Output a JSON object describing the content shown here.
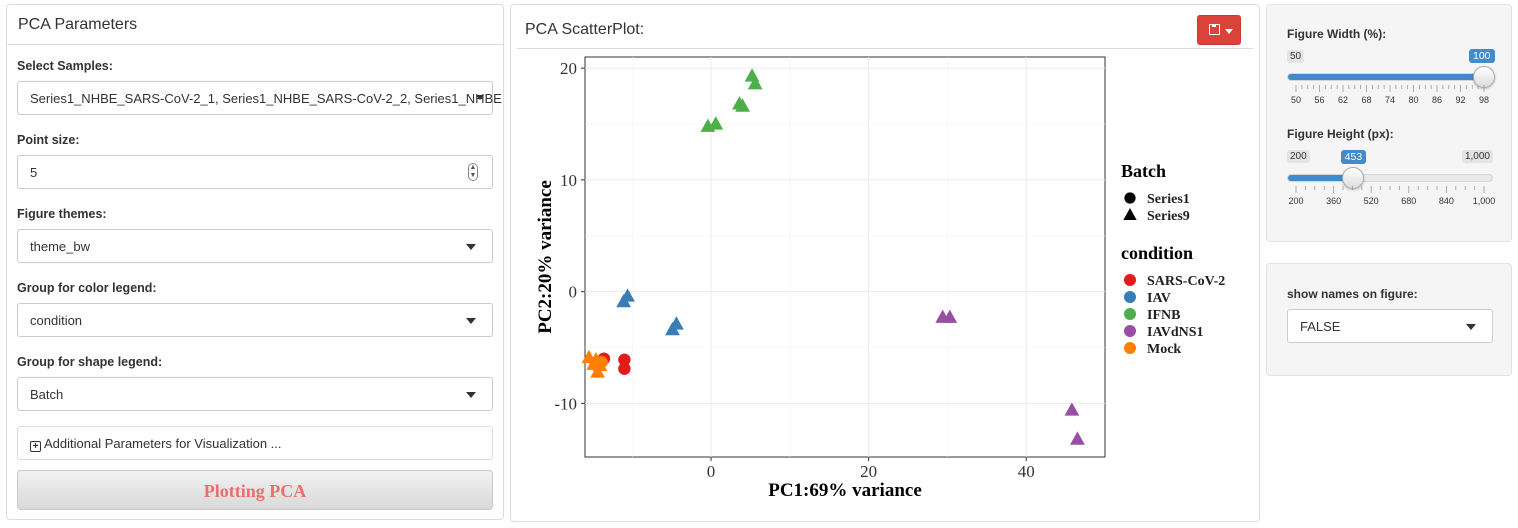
{
  "left_panel": {
    "title": "PCA Parameters",
    "select_samples": {
      "label": "Select Samples:",
      "value": "Series1_NHBE_SARS-CoV-2_1, Series1_NHBE_SARS-CoV-2_2, Series1_NHBE"
    },
    "point_size": {
      "label": "Point size:",
      "value": "5"
    },
    "figure_themes": {
      "label": "Figure themes:",
      "value": "theme_bw"
    },
    "color_group": {
      "label": "Group for color legend:",
      "value": "condition"
    },
    "shape_group": {
      "label": "Group for shape legend:",
      "value": "Batch"
    },
    "additional_params": "Additional Parameters for Visualization ...",
    "plot_button": "Plotting PCA"
  },
  "center_panel": {
    "title": "PCA ScatterPlot:"
  },
  "chart_data": {
    "type": "scatter",
    "xlabel": "PC1:69% variance",
    "ylabel": "PC2:20% variance",
    "xlim": [
      -16,
      50
    ],
    "ylim": [
      -14.8,
      21
    ],
    "xticks": [
      0,
      20,
      40
    ],
    "yticks": [
      -10,
      0,
      10,
      20
    ],
    "grid": true,
    "legend_position": "right",
    "shape_legend": {
      "title": "Batch",
      "entries": [
        {
          "name": "Series1",
          "shape": "circle"
        },
        {
          "name": "Series9",
          "shape": "triangle"
        }
      ]
    },
    "color_legend": {
      "title": "condition",
      "entries": [
        {
          "name": "SARS-CoV-2",
          "color": "#e41a1c"
        },
        {
          "name": "IAV",
          "color": "#377eb8"
        },
        {
          "name": "IFNB",
          "color": "#4daf4a"
        },
        {
          "name": "IAVdNS1",
          "color": "#984ea3"
        },
        {
          "name": "Mock",
          "color": "#ff7f00"
        }
      ]
    },
    "points": [
      {
        "x": 5.2,
        "y": 19.3,
        "condition": "IFNB",
        "batch": "Series9"
      },
      {
        "x": 5.6,
        "y": 18.6,
        "condition": "IFNB",
        "batch": "Series9"
      },
      {
        "x": 3.6,
        "y": 16.8,
        "condition": "IFNB",
        "batch": "Series9"
      },
      {
        "x": 4.0,
        "y": 16.6,
        "condition": "IFNB",
        "batch": "Series9"
      },
      {
        "x": -0.4,
        "y": 14.8,
        "condition": "IFNB",
        "batch": "Series9"
      },
      {
        "x": 0.6,
        "y": 15.0,
        "condition": "IFNB",
        "batch": "Series9"
      },
      {
        "x": -11.1,
        "y": -0.9,
        "condition": "IAV",
        "batch": "Series9"
      },
      {
        "x": -10.6,
        "y": -0.4,
        "condition": "IAV",
        "batch": "Series9"
      },
      {
        "x": -4.9,
        "y": -3.4,
        "condition": "IAV",
        "batch": "Series9"
      },
      {
        "x": -4.4,
        "y": -2.9,
        "condition": "IAV",
        "batch": "Series9"
      },
      {
        "x": 29.4,
        "y": -2.3,
        "condition": "IAVdNS1",
        "batch": "Series9"
      },
      {
        "x": 30.3,
        "y": -2.3,
        "condition": "IAVdNS1",
        "batch": "Series9"
      },
      {
        "x": 45.8,
        "y": -10.6,
        "condition": "IAVdNS1",
        "batch": "Series9"
      },
      {
        "x": 46.5,
        "y": -13.2,
        "condition": "IAVdNS1",
        "batch": "Series9"
      },
      {
        "x": -13.6,
        "y": -6.0,
        "condition": "SARS-CoV-2",
        "batch": "Series1"
      },
      {
        "x": -11.0,
        "y": -6.1,
        "condition": "SARS-CoV-2",
        "batch": "Series1"
      },
      {
        "x": -11.0,
        "y": -6.9,
        "condition": "SARS-CoV-2",
        "batch": "Series1"
      },
      {
        "x": -15.5,
        "y": -5.9,
        "condition": "Mock",
        "batch": "Series9"
      },
      {
        "x": -14.6,
        "y": -6.1,
        "condition": "Mock",
        "batch": "Series9"
      },
      {
        "x": -14.1,
        "y": -6.6,
        "condition": "Mock",
        "batch": "Series9"
      },
      {
        "x": -14.9,
        "y": -6.5,
        "condition": "Mock",
        "batch": "Series9"
      },
      {
        "x": -14.4,
        "y": -7.2,
        "condition": "Mock",
        "batch": "Series9"
      },
      {
        "x": -13.9,
        "y": -6.3,
        "condition": "Mock",
        "batch": "Series1"
      }
    ]
  },
  "right_panel": {
    "width_slider": {
      "label": "Figure Width (%):",
      "min": "50",
      "max": "100",
      "value": "100",
      "value_fraction": 1.0,
      "ticks": [
        "50",
        "56",
        "62",
        "68",
        "74",
        "80",
        "86",
        "92",
        "98"
      ]
    },
    "height_slider": {
      "label": "Figure Height (px):",
      "min": "200",
      "max": "1,000",
      "value": "453",
      "value_fraction": 0.316,
      "ticks": [
        "200",
        "360",
        "520",
        "680",
        "840",
        "1,000"
      ]
    },
    "show_names": {
      "label": "show names on figure:",
      "value": "FALSE"
    }
  }
}
